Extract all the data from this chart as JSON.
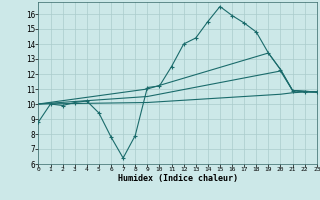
{
  "bg_color": "#cce8e8",
  "grid_color": "#aacccc",
  "line_color": "#1a6b6b",
  "line1_x": [
    0,
    1,
    2,
    3,
    4,
    5,
    6,
    7,
    8,
    9,
    10,
    11,
    12,
    13,
    14,
    15,
    16,
    17,
    18,
    19,
    20,
    21,
    22,
    23
  ],
  "line1_y": [
    8.8,
    10.0,
    9.9,
    10.1,
    10.2,
    9.4,
    7.8,
    6.4,
    7.9,
    11.1,
    11.2,
    12.5,
    14.0,
    14.4,
    15.5,
    16.5,
    15.9,
    15.4,
    14.8,
    13.4,
    12.3,
    10.9,
    10.8,
    10.8
  ],
  "line2_x": [
    0,
    9,
    19,
    20,
    21,
    22,
    23
  ],
  "line2_y": [
    10.0,
    11.0,
    13.4,
    12.3,
    10.9,
    10.85,
    10.8
  ],
  "line3_x": [
    0,
    9,
    20,
    21,
    22,
    23
  ],
  "line3_y": [
    10.0,
    10.5,
    12.2,
    10.9,
    10.85,
    10.8
  ],
  "line4_x": [
    0,
    9,
    20,
    21,
    22,
    23
  ],
  "line4_y": [
    10.0,
    10.1,
    10.65,
    10.75,
    10.8,
    10.8
  ],
  "xlabel": "Humidex (Indice chaleur)",
  "xlim": [
    0,
    23
  ],
  "ylim": [
    6,
    16.8
  ],
  "yticks": [
    6,
    7,
    8,
    9,
    10,
    11,
    12,
    13,
    14,
    15,
    16
  ],
  "xticks": [
    0,
    1,
    2,
    3,
    4,
    5,
    6,
    7,
    8,
    9,
    10,
    11,
    12,
    13,
    14,
    15,
    16,
    17,
    18,
    19,
    20,
    21,
    22,
    23
  ]
}
